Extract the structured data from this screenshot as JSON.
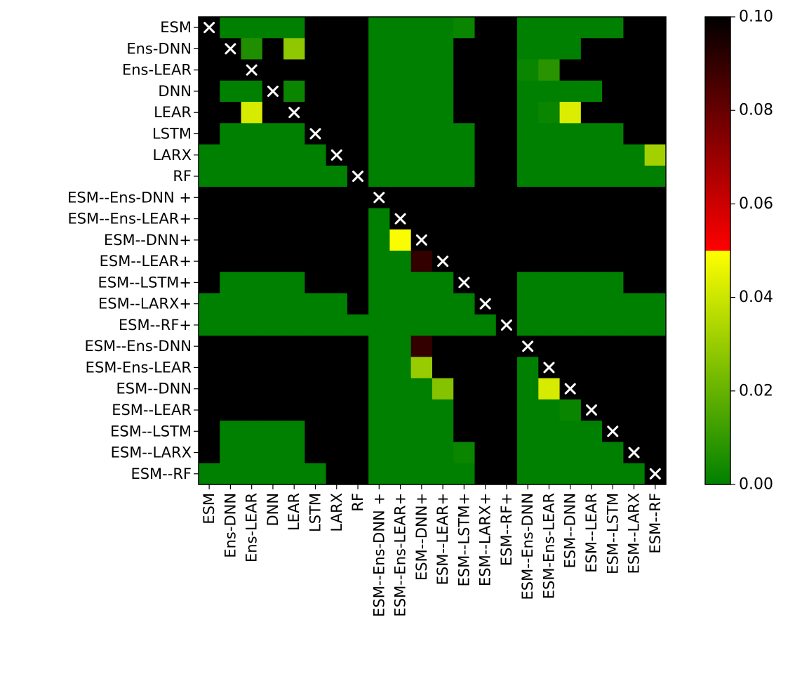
{
  "chart_data": {
    "type": "heatmap",
    "title": "",
    "xlabel": "",
    "ylabel": "",
    "rows": [
      "ESM",
      "Ens-DNN",
      "Ens-LEAR",
      "DNN",
      "LEAR",
      "LSTM",
      "LARX",
      "RF",
      "ESM--Ens-DNN +",
      "ESM--Ens-LEAR+",
      "ESM--DNN+",
      "ESM--LEAR+",
      "ESM--LSTM+",
      "ESM--LARX+",
      "ESM--RF+",
      "ESM--Ens-DNN",
      "ESM-Ens-LEAR",
      "ESM--DNN",
      "ESM--LEAR",
      "ESM--LSTM",
      "ESM--LARX",
      "ESM--RF"
    ],
    "columns": [
      "ESM",
      "Ens-DNN",
      "Ens-LEAR",
      "DNN",
      "LEAR",
      "LSTM",
      "LARX",
      "RF",
      "ESM--Ens-DNN +",
      "ESM--Ens-LEAR+",
      "ESM--DNN+",
      "ESM--LEAR+",
      "ESM--LSTM+",
      "ESM--LARX+",
      "ESM--RF+",
      "ESM--Ens-DNN",
      "ESM-Ens-LEAR",
      "ESM--DNN",
      "ESM--LEAR",
      "ESM--LSTM",
      "ESM--LARX",
      "ESM--RF"
    ],
    "values": [
      [
        null,
        0.0,
        0.0,
        0.0,
        0.0,
        1,
        1,
        1,
        0.0,
        0.0,
        0.0,
        0.0,
        0.002,
        1,
        1,
        0.0,
        0.0,
        0.0,
        0.0,
        0.0,
        1,
        1
      ],
      [
        1,
        null,
        0.006,
        1,
        0.028,
        1,
        1,
        1,
        0.0,
        0.0,
        0.0,
        0.0,
        1,
        1,
        1,
        0.0,
        0.0,
        0.0,
        1,
        1,
        1,
        1
      ],
      [
        1,
        1,
        null,
        1,
        1,
        1,
        1,
        1,
        0.0,
        0.0,
        0.0,
        0.0,
        1,
        1,
        1,
        0.002,
        0.008,
        1,
        1,
        1,
        1,
        1
      ],
      [
        1,
        0.0,
        0.0,
        null,
        0.002,
        1,
        1,
        1,
        0.0,
        0.0,
        0.0,
        0.0,
        1,
        1,
        1,
        0.0,
        0.0,
        0.0,
        0.0,
        1,
        1,
        1
      ],
      [
        1,
        1,
        0.042,
        1,
        null,
        1,
        1,
        1,
        0.0,
        0.0,
        0.0,
        0.0,
        1,
        1,
        1,
        0.0,
        0.002,
        0.043,
        1,
        1,
        1,
        1
      ],
      [
        1,
        0.0,
        0.0,
        0.0,
        0.0,
        null,
        1,
        1,
        0.0,
        0.0,
        0.0,
        0.0,
        0.0,
        1,
        1,
        0.0,
        0.0,
        0.0,
        0.0,
        0.0,
        1,
        1
      ],
      [
        0.0,
        0.0,
        0.0,
        0.0,
        0.0,
        0.0,
        null,
        1,
        0.0,
        0.0,
        0.0,
        0.0,
        0.0,
        1,
        1,
        0.0,
        0.0,
        0.0,
        0.0,
        0.0,
        0.0,
        0.032
      ],
      [
        0.0,
        0.0,
        0.0,
        0.0,
        0.0,
        0.0,
        0.0,
        null,
        0.0,
        0.0,
        0.0,
        0.0,
        0.0,
        1,
        1,
        0.0,
        0.0,
        0.0,
        0.0,
        0.0,
        0.0,
        0.0
      ],
      [
        1,
        1,
        1,
        1,
        1,
        1,
        1,
        1,
        null,
        1,
        1,
        1,
        1,
        1,
        1,
        1,
        1,
        1,
        1,
        1,
        1,
        1
      ],
      [
        1,
        1,
        1,
        1,
        1,
        1,
        1,
        1,
        0.0,
        null,
        1,
        1,
        1,
        1,
        1,
        1,
        1,
        1,
        1,
        1,
        1,
        1
      ],
      [
        1,
        1,
        1,
        1,
        1,
        1,
        1,
        1,
        0.0,
        0.049,
        null,
        1,
        1,
        1,
        1,
        1,
        1,
        1,
        1,
        1,
        1,
        1
      ],
      [
        1,
        1,
        1,
        1,
        1,
        1,
        1,
        1,
        0.0,
        0.0,
        0.09,
        null,
        1,
        1,
        1,
        1,
        1,
        1,
        1,
        1,
        1,
        1
      ],
      [
        1,
        0.0,
        0.0,
        0.0,
        0.0,
        1,
        1,
        1,
        0.0,
        0.0,
        0.0,
        0.0,
        null,
        1,
        1,
        0.0,
        0.0,
        0.0,
        0.0,
        0.0,
        1,
        1
      ],
      [
        0.0,
        0.0,
        0.0,
        0.0,
        0.0,
        0.0,
        0.0,
        1,
        0.0,
        0.0,
        0.0,
        0.0,
        0.0,
        null,
        1,
        0.0,
        0.0,
        0.0,
        0.0,
        0.0,
        0.0,
        0.0
      ],
      [
        0.0,
        0.0,
        0.0,
        0.0,
        0.0,
        0.0,
        0.0,
        0.0,
        0.0,
        0.0,
        0.0,
        0.0,
        0.0,
        0.0,
        null,
        0.0,
        0.0,
        0.0,
        0.0,
        0.0,
        0.0,
        0.0
      ],
      [
        1,
        1,
        1,
        1,
        1,
        1,
        1,
        1,
        0.0,
        0.0,
        0.09,
        1,
        1,
        1,
        1,
        null,
        1,
        1,
        1,
        1,
        1,
        1
      ],
      [
        1,
        1,
        1,
        1,
        1,
        1,
        1,
        1,
        0.0,
        0.0,
        0.03,
        1,
        1,
        1,
        1,
        0.0,
        null,
        1,
        1,
        1,
        1,
        1
      ],
      [
        1,
        1,
        1,
        1,
        1,
        1,
        1,
        1,
        0.0,
        0.0,
        0.0,
        0.026,
        1,
        1,
        1,
        0.0,
        0.042,
        null,
        1,
        1,
        1,
        1
      ],
      [
        1,
        1,
        1,
        1,
        1,
        1,
        1,
        1,
        0.0,
        0.0,
        0.0,
        0.0,
        1,
        1,
        1,
        0.0,
        0.0,
        0.002,
        null,
        1,
        1,
        1
      ],
      [
        1,
        0.0,
        0.0,
        0.0,
        0.0,
        1,
        1,
        1,
        0.0,
        0.0,
        0.0,
        0.0,
        1,
        1,
        1,
        0.0,
        0.0,
        0.0,
        0.0,
        null,
        1,
        1
      ],
      [
        1,
        0.0,
        0.0,
        0.0,
        0.0,
        1,
        1,
        1,
        0.0,
        0.0,
        0.0,
        0.0,
        0.002,
        1,
        1,
        0.0,
        0.0,
        0.0,
        0.0,
        0.0,
        null,
        1
      ],
      [
        0.0,
        0.0,
        0.0,
        0.0,
        0.0,
        0.0,
        1,
        1,
        0.0,
        0.0,
        0.0,
        0.0,
        0.0,
        1,
        1,
        0.0,
        0.0,
        0.0,
        0.0,
        0.0,
        0.0,
        null
      ]
    ],
    "value_range": [
      0.0,
      0.1
    ],
    "values_above_range": "black",
    "diagonal_marker": "×",
    "grid": false,
    "colorbar": {
      "placement": "right",
      "ticks": [
        "0.00",
        "0.02",
        "0.04",
        "0.06",
        "0.08",
        "0.10"
      ],
      "tick_values": [
        0.0,
        0.02,
        0.04,
        0.06,
        0.08,
        0.1
      ],
      "stops": [
        {
          "value": 0.0,
          "color": "#008000"
        },
        {
          "value": 0.05,
          "color": "#ffff00"
        },
        {
          "value": 0.05001,
          "color": "#ff0000"
        },
        {
          "value": 0.1,
          "color": "#000000"
        }
      ]
    },
    "colors": {
      "above_range": "#000000",
      "marker": "#ffffff",
      "frame": "#000000"
    }
  }
}
